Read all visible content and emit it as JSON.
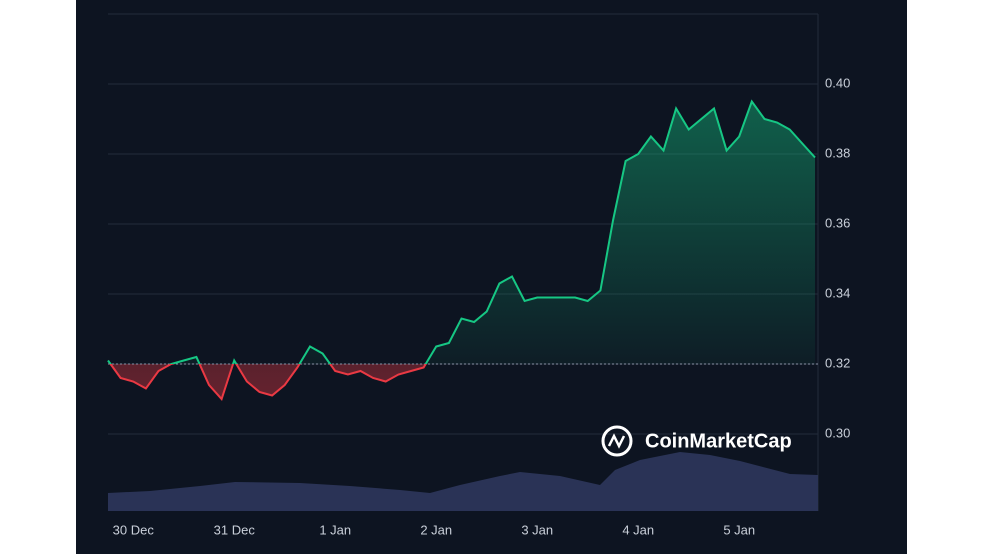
{
  "chart_data": {
    "type": "line",
    "watermark": "CoinMarketCap",
    "x": [
      -0.25,
      -0.125,
      0,
      0.125,
      0.25,
      0.375,
      0.5,
      0.625,
      0.75,
      0.875,
      1,
      1.125,
      1.25,
      1.375,
      1.5,
      1.625,
      1.75,
      1.875,
      2,
      2.125,
      2.25,
      2.375,
      2.5,
      2.625,
      2.75,
      2.875,
      3,
      3.125,
      3.25,
      3.375,
      3.5,
      3.625,
      3.75,
      3.875,
      4,
      4.125,
      4.25,
      4.375,
      4.5,
      4.625,
      4.75,
      4.875,
      5,
      5.125,
      5.25,
      5.375,
      5.5,
      5.625,
      5.75,
      5.875,
      6,
      6.125,
      6.25,
      6.375,
      6.5,
      6.625,
      6.75
    ],
    "values": [
      0.321,
      0.316,
      0.315,
      0.313,
      0.318,
      0.32,
      0.321,
      0.322,
      0.314,
      0.31,
      0.321,
      0.315,
      0.312,
      0.311,
      0.314,
      0.319,
      0.325,
      0.323,
      0.318,
      0.317,
      0.318,
      0.316,
      0.315,
      0.317,
      0.318,
      0.319,
      0.325,
      0.326,
      0.333,
      0.332,
      0.335,
      0.343,
      0.345,
      0.338,
      0.339,
      0.339,
      0.339,
      0.339,
      0.338,
      0.341,
      0.361,
      0.378,
      0.38,
      0.385,
      0.381,
      0.393,
      0.387,
      0.39,
      0.393,
      0.381,
      0.385,
      0.395,
      0.39,
      0.389,
      0.387,
      0.383,
      0.379
    ],
    "baseline": 0.32,
    "up_color": "#16c784",
    "down_color": "#ea3943",
    "xlim": [
      -0.25,
      6.78
    ],
    "xticks": [
      {
        "value": 0,
        "label": "30 Dec"
      },
      {
        "value": 1,
        "label": "31 Dec"
      },
      {
        "value": 2,
        "label": "1 Jan"
      },
      {
        "value": 3,
        "label": "2 Jan"
      },
      {
        "value": 4,
        "label": "3 Jan"
      },
      {
        "value": 5,
        "label": "4 Jan"
      },
      {
        "value": 6,
        "label": "5 Jan"
      }
    ],
    "ylim": [
      0.278,
      0.42
    ],
    "yticks": [
      {
        "value": 0.3,
        "label": "0.30"
      },
      0.32,
      0.34,
      0.36,
      0.38,
      {
        "value": 0.4,
        "label": "0.40"
      }
    ],
    "grid": true
  }
}
